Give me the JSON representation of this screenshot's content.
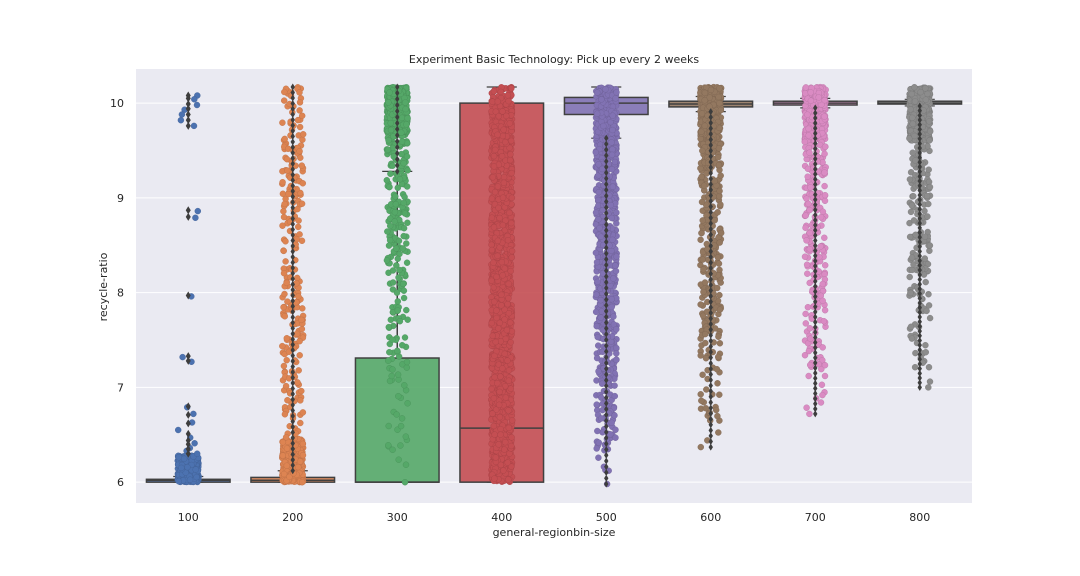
{
  "chart_data": {
    "type": "box+strip",
    "title": "Experiment Basic Technology: Pick up every 2 weeks",
    "xlabel": "general-regionbin-size",
    "ylabel": "recycle-ratio",
    "categories": [
      "100",
      "200",
      "300",
      "400",
      "500",
      "600",
      "700",
      "800"
    ],
    "ylim": [
      5.78,
      10.36
    ],
    "yticks": [
      "6",
      "7",
      "8",
      "9",
      "10"
    ],
    "grid": true,
    "background": "#eaeaf2",
    "colors": [
      "#4c72b0",
      "#dd8452",
      "#55a868",
      "#c44e52",
      "#8172b3",
      "#937860",
      "#da8bc3",
      "#8c8c8c"
    ],
    "boxes": [
      {
        "category": "100",
        "q1": 6.0,
        "median": 6.02,
        "q3": 6.03,
        "whisker_low": 6.0,
        "whisker_high": 6.06,
        "outliers": [
          10.08,
          10.05,
          9.99,
          9.94,
          9.88,
          9.82,
          9.76,
          8.87,
          8.8,
          7.97,
          7.33,
          7.28,
          6.8,
          6.71,
          6.62,
          6.51,
          6.44,
          6.4,
          6.35,
          6.3
        ],
        "points": {
          "min": 6.0,
          "max": 10.08,
          "dense_max": 6.28,
          "sparse_vals": [
            10.08,
            10.04,
            9.98,
            9.93,
            9.88,
            9.82,
            9.76,
            8.86,
            8.79,
            7.96,
            7.32,
            7.27,
            6.79,
            6.72,
            6.63,
            6.55,
            6.47,
            6.41,
            6.36,
            6.33,
            6.3
          ]
        }
      },
      {
        "category": "200",
        "q1": 6.0,
        "median": 6.02,
        "q3": 6.05,
        "whisker_low": 6.0,
        "whisker_high": 6.12,
        "outliers": [],
        "points": {
          "min": 6.0,
          "max": 10.17,
          "dense_max": 6.45,
          "sparse_count": 240
        }
      },
      {
        "category": "300",
        "q1": 6.0,
        "median": 6.0,
        "q3": 7.31,
        "whisker_low": 6.0,
        "whisker_high": 9.28,
        "outliers": [],
        "points": {
          "min": 6.0,
          "max": 10.17,
          "dense_min": 9.65,
          "dense_max": 10.17,
          "sparse_count": 230
        }
      },
      {
        "category": "400",
        "q1": 6.0,
        "median": 6.57,
        "q3": 10.0,
        "whisker_low": 6.0,
        "whisker_high": 10.17,
        "outliers": [],
        "points": {
          "min": 6.0,
          "max": 10.17,
          "uniform": true
        }
      },
      {
        "category": "500",
        "q1": 9.88,
        "median": 10.0,
        "q3": 10.06,
        "whisker_low": 9.63,
        "whisker_high": 10.17,
        "outliers": [],
        "points": {
          "min": 5.98,
          "max": 10.17,
          "dense_min": 9.4,
          "dense_max": 10.17,
          "sparse_count": 520
        }
      },
      {
        "category": "600",
        "q1": 9.96,
        "median": 9.99,
        "q3": 10.02,
        "whisker_low": 9.91,
        "whisker_high": 10.07,
        "outliers": [],
        "points": {
          "min": 6.37,
          "max": 10.17,
          "dense_min": 9.55,
          "dense_max": 10.17,
          "sparse_count": 300
        }
      },
      {
        "category": "700",
        "q1": 9.98,
        "median": 10.0,
        "q3": 10.02,
        "whisker_low": 9.95,
        "whisker_high": 10.05,
        "outliers": [],
        "points": {
          "min": 6.72,
          "max": 10.17,
          "dense_min": 9.6,
          "dense_max": 10.17,
          "sparse_count": 230
        }
      },
      {
        "category": "800",
        "q1": 9.99,
        "median": 10.0,
        "q3": 10.02,
        "whisker_low": 9.97,
        "whisker_high": 10.04,
        "outliers": [],
        "points": {
          "min": 7.0,
          "max": 10.17,
          "dense_min": 9.6,
          "dense_max": 10.17,
          "sparse_count": 180
        }
      }
    ]
  }
}
